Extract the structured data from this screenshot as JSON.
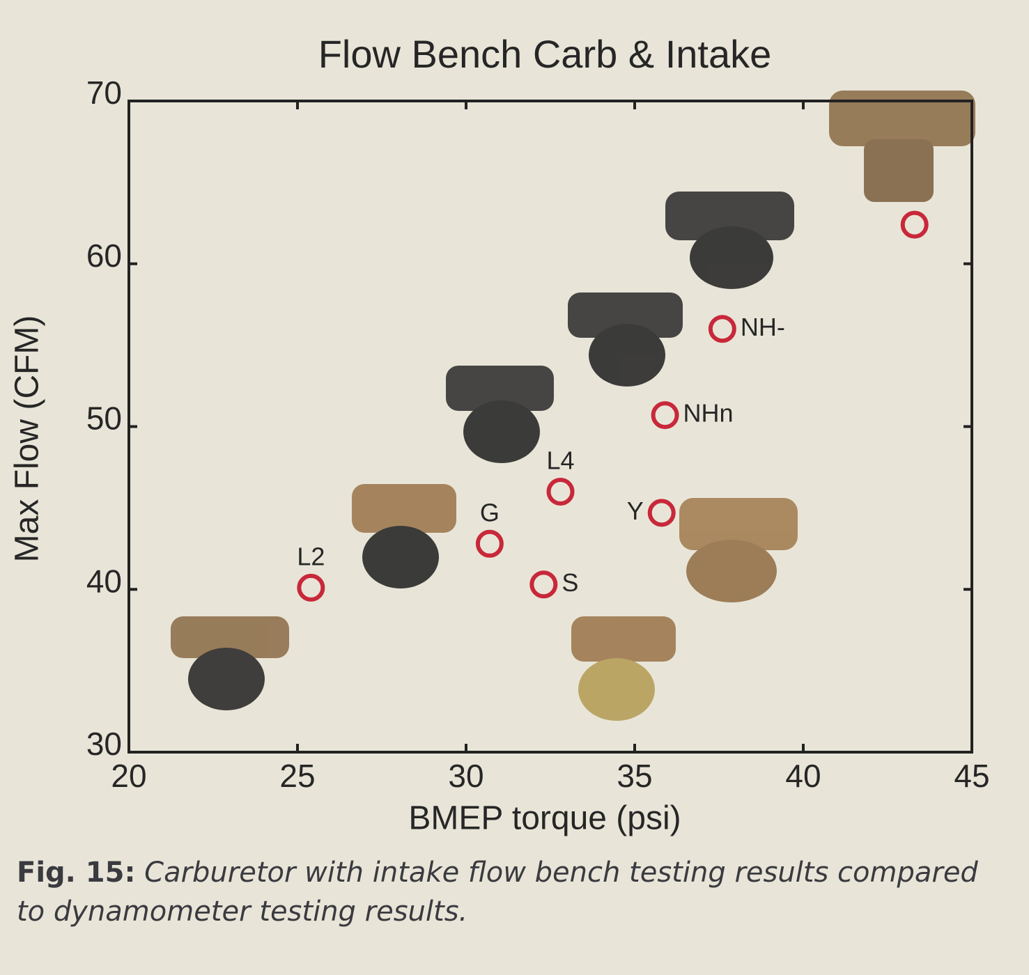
{
  "chart_data": {
    "type": "scatter",
    "title": "Flow Bench Carb & Intake",
    "x_label": "BMEP torque (psi)",
    "y_label": "Max Flow (CFM)",
    "x": [
      25.4,
      30.7,
      32.3,
      32.8,
      35.8,
      35.9,
      37.6,
      43.3
    ],
    "series": [
      {
        "color": "#c8283a",
        "values": [
          40.1,
          42.8,
          40.3,
          46.0,
          44.7,
          50.7,
          56.0,
          62.4
        ]
      }
    ],
    "point_labels": [
      "L2",
      "G",
      "S",
      "L4",
      "Y",
      "NHn",
      "NH-",
      null
    ],
    "xlim": [
      20,
      45
    ],
    "xticks": [
      20,
      25,
      30,
      35,
      40,
      45
    ],
    "ylim": [
      30,
      70
    ],
    "yticks": [
      30,
      40,
      50,
      60,
      70
    ],
    "grid": false
  },
  "caption": {
    "label": "Fig. 15:",
    "text": "Carburetor with intake flow bench testing results compared to dynamometer testing results."
  }
}
